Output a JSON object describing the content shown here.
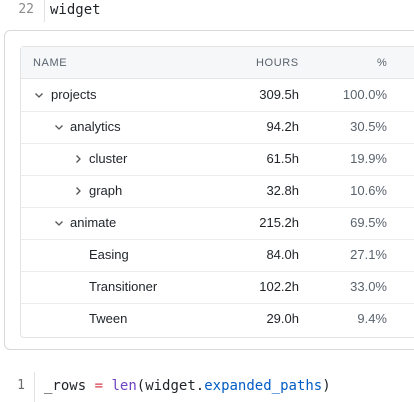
{
  "cell1": {
    "line_number": "22",
    "code": "widget"
  },
  "table": {
    "headers": {
      "name": "NAME",
      "hours": "HOURS",
      "pct": "%"
    },
    "rows": [
      {
        "name": "projects",
        "hours": "309.5h",
        "pct": "100.0%",
        "state": "expanded",
        "depth": 0
      },
      {
        "name": "analytics",
        "hours": "94.2h",
        "pct": "30.5%",
        "state": "expanded",
        "depth": 1
      },
      {
        "name": "cluster",
        "hours": "61.5h",
        "pct": "19.9%",
        "state": "collapsed",
        "depth": 2
      },
      {
        "name": "graph",
        "hours": "32.8h",
        "pct": "10.6%",
        "state": "collapsed",
        "depth": 2
      },
      {
        "name": "animate",
        "hours": "215.2h",
        "pct": "69.5%",
        "state": "expanded",
        "depth": 1
      },
      {
        "name": "Easing",
        "hours": "84.0h",
        "pct": "27.1%",
        "state": "leaf",
        "depth": 2
      },
      {
        "name": "Transitioner",
        "hours": "102.2h",
        "pct": "33.0%",
        "state": "leaf",
        "depth": 2
      },
      {
        "name": "Tween",
        "hours": "29.0h",
        "pct": "9.4%",
        "state": "leaf",
        "depth": 2
      }
    ]
  },
  "cell2": {
    "line_number": "1",
    "code_tokens": {
      "var": "_rows",
      "op": "=",
      "fn": "len",
      "open": "(",
      "obj": "widget",
      "dot": ".",
      "attr": "expanded_paths",
      "close": ")"
    }
  }
}
